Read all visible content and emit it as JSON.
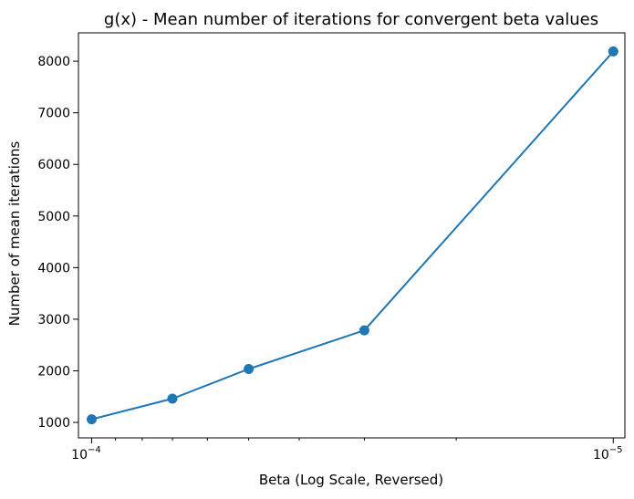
{
  "chart_data": {
    "type": "line",
    "title": "g(x) - Mean number of iterations for convergent beta values",
    "xlabel": "Beta (Log Scale, Reversed)",
    "ylabel": "Number of mean iterations",
    "x_scale": "log",
    "x_reversed": true,
    "xlim": [
      0.000106,
      9.5e-06
    ],
    "ylim": [
      700,
      8550
    ],
    "x_major_ticks": [
      {
        "value": 0.0001,
        "base": "10",
        "exponent": "−4"
      },
      {
        "value": 1e-05,
        "base": "10",
        "exponent": "−5"
      }
    ],
    "x_minor_ticks": [
      9e-05,
      8e-05,
      7e-05,
      6e-05,
      5e-05,
      4e-05,
      3e-05,
      2e-05
    ],
    "y_ticks": [
      1000,
      2000,
      3000,
      4000,
      5000,
      6000,
      7000,
      8000
    ],
    "y_tick_labels": [
      "1000",
      "2000",
      "3000",
      "4000",
      "5000",
      "6000",
      "7000",
      "8000"
    ],
    "grid": false,
    "series": [
      {
        "color": "#1f77b4",
        "marker": "circle",
        "points": [
          {
            "x": 0.0001,
            "y": 1060
          },
          {
            "x": 7e-05,
            "y": 1460
          },
          {
            "x": 5e-05,
            "y": 2035
          },
          {
            "x": 3e-05,
            "y": 2785
          },
          {
            "x": 1e-05,
            "y": 8190
          }
        ]
      }
    ]
  }
}
